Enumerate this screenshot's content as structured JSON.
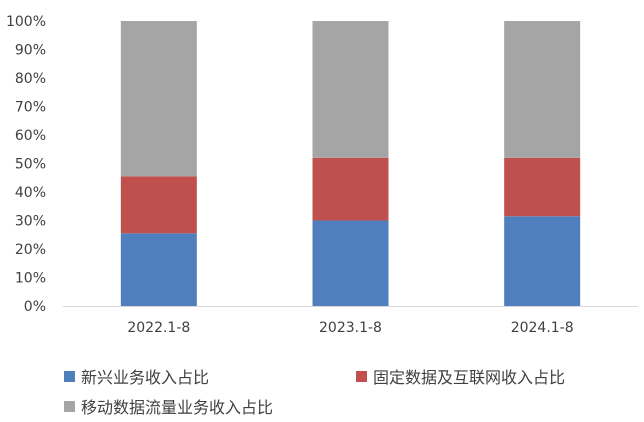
{
  "chart_data": {
    "type": "bar",
    "stacked": true,
    "percent_stacked": true,
    "categories": [
      "2022.1-8",
      "2023.1-8",
      "2024.1-8"
    ],
    "series": [
      {
        "name": "新兴业务收入占比",
        "color": "#4f7fbd",
        "values": [
          25.5,
          30,
          31.5
        ]
      },
      {
        "name": "固定数据及互联网收入占比",
        "color": "#c0504d",
        "values": [
          20,
          22,
          20.5
        ]
      },
      {
        "name": "移动数据流量业务收入占比",
        "color": "#a5a5a5",
        "values": [
          54.5,
          48,
          48
        ]
      }
    ],
    "ylim": [
      0,
      100
    ],
    "yticks": [
      "0%",
      "10%",
      "20%",
      "30%",
      "40%",
      "50%",
      "60%",
      "70%",
      "80%",
      "90%",
      "100%"
    ],
    "grid": false,
    "legend_position": "bottom"
  }
}
